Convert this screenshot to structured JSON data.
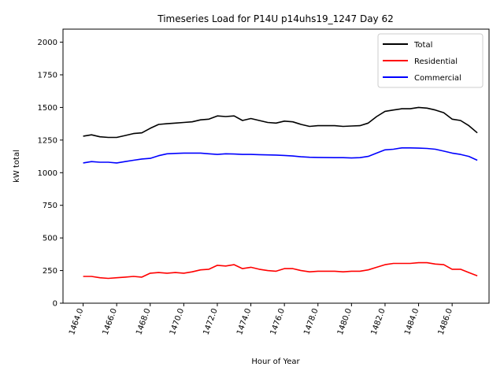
{
  "chart_data": {
    "type": "line",
    "title": "Timeseries Load for P14U p14uhs19_1247  Day 62",
    "xlabel": "Hour of Year",
    "ylabel": "kW total",
    "xlim": [
      1462.8,
      1488.2
    ],
    "ylim": [
      0,
      2100
    ],
    "yticks": [
      0,
      250,
      500,
      750,
      1000,
      1250,
      1500,
      1750,
      2000
    ],
    "xticks": [
      1464,
      1466,
      1468,
      1470,
      1472,
      1474,
      1476,
      1478,
      1480,
      1482,
      1484,
      1486
    ],
    "xtick_labels": [
      "1464.0",
      "1466.0",
      "1468.0",
      "1470.0",
      "1472.0",
      "1474.0",
      "1476.0",
      "1478.0",
      "1480.0",
      "1482.0",
      "1484.0",
      "1486.0"
    ],
    "legend_position": "upper-right",
    "series": [
      {
        "name": "Total",
        "color": "#000000",
        "x": [
          1464.0,
          1464.5,
          1465.0,
          1465.5,
          1466.0,
          1466.5,
          1467.0,
          1467.5,
          1468.0,
          1468.5,
          1469.0,
          1469.5,
          1470.0,
          1470.5,
          1471.0,
          1471.5,
          1472.0,
          1472.5,
          1473.0,
          1473.5,
          1474.0,
          1474.5,
          1475.0,
          1475.5,
          1476.0,
          1476.5,
          1477.0,
          1477.5,
          1478.0,
          1478.5,
          1479.0,
          1479.5,
          1480.0,
          1480.5,
          1481.0,
          1481.5,
          1482.0,
          1482.5,
          1483.0,
          1483.5,
          1484.0,
          1484.5,
          1485.0,
          1485.5,
          1486.0,
          1486.5,
          1487.0,
          1487.5
        ],
        "values": [
          1280,
          1290,
          1275,
          1270,
          1270,
          1285,
          1300,
          1305,
          1340,
          1370,
          1375,
          1380,
          1385,
          1390,
          1405,
          1410,
          1435,
          1430,
          1435,
          1400,
          1415,
          1400,
          1385,
          1380,
          1395,
          1390,
          1370,
          1355,
          1360,
          1360,
          1360,
          1355,
          1358,
          1360,
          1380,
          1430,
          1470,
          1480,
          1490,
          1490,
          1500,
          1495,
          1480,
          1460,
          1410,
          1400,
          1360,
          1305
        ]
      },
      {
        "name": "Residential",
        "color": "#ff0000",
        "x": [
          1464.0,
          1464.5,
          1465.0,
          1465.5,
          1466.0,
          1466.5,
          1467.0,
          1467.5,
          1468.0,
          1468.5,
          1469.0,
          1469.5,
          1470.0,
          1470.5,
          1471.0,
          1471.5,
          1472.0,
          1472.5,
          1473.0,
          1473.5,
          1474.0,
          1474.5,
          1475.0,
          1475.5,
          1476.0,
          1476.5,
          1477.0,
          1477.5,
          1478.0,
          1478.5,
          1479.0,
          1479.5,
          1480.0,
          1480.5,
          1481.0,
          1481.5,
          1482.0,
          1482.5,
          1483.0,
          1483.5,
          1484.0,
          1484.5,
          1485.0,
          1485.5,
          1486.0,
          1486.5,
          1487.0,
          1487.5
        ],
        "values": [
          205,
          205,
          195,
          190,
          195,
          200,
          205,
          200,
          230,
          235,
          230,
          235,
          230,
          240,
          255,
          260,
          290,
          285,
          295,
          265,
          275,
          260,
          250,
          245,
          265,
          265,
          250,
          240,
          245,
          245,
          245,
          240,
          245,
          245,
          255,
          275,
          295,
          305,
          305,
          305,
          310,
          310,
          300,
          295,
          260,
          260,
          235,
          210
        ]
      },
      {
        "name": "Commercial",
        "color": "#0000ff",
        "x": [
          1464.0,
          1464.5,
          1465.0,
          1465.5,
          1466.0,
          1466.5,
          1467.0,
          1467.5,
          1468.0,
          1468.5,
          1469.0,
          1469.5,
          1470.0,
          1470.5,
          1471.0,
          1471.5,
          1472.0,
          1472.5,
          1473.0,
          1473.5,
          1474.0,
          1474.5,
          1475.0,
          1475.5,
          1476.0,
          1476.5,
          1477.0,
          1477.5,
          1478.0,
          1478.5,
          1479.0,
          1479.5,
          1480.0,
          1480.5,
          1481.0,
          1481.5,
          1482.0,
          1482.5,
          1483.0,
          1483.5,
          1484.0,
          1484.5,
          1485.0,
          1485.5,
          1486.0,
          1486.5,
          1487.0,
          1487.5
        ],
        "values": [
          1075,
          1085,
          1080,
          1080,
          1075,
          1085,
          1095,
          1105,
          1110,
          1130,
          1145,
          1148,
          1150,
          1150,
          1150,
          1145,
          1140,
          1145,
          1143,
          1140,
          1140,
          1138,
          1136,
          1135,
          1132,
          1128,
          1122,
          1118,
          1117,
          1116,
          1115,
          1115,
          1113,
          1115,
          1125,
          1150,
          1175,
          1180,
          1190,
          1190,
          1188,
          1186,
          1180,
          1165,
          1150,
          1140,
          1125,
          1095
        ]
      }
    ]
  }
}
